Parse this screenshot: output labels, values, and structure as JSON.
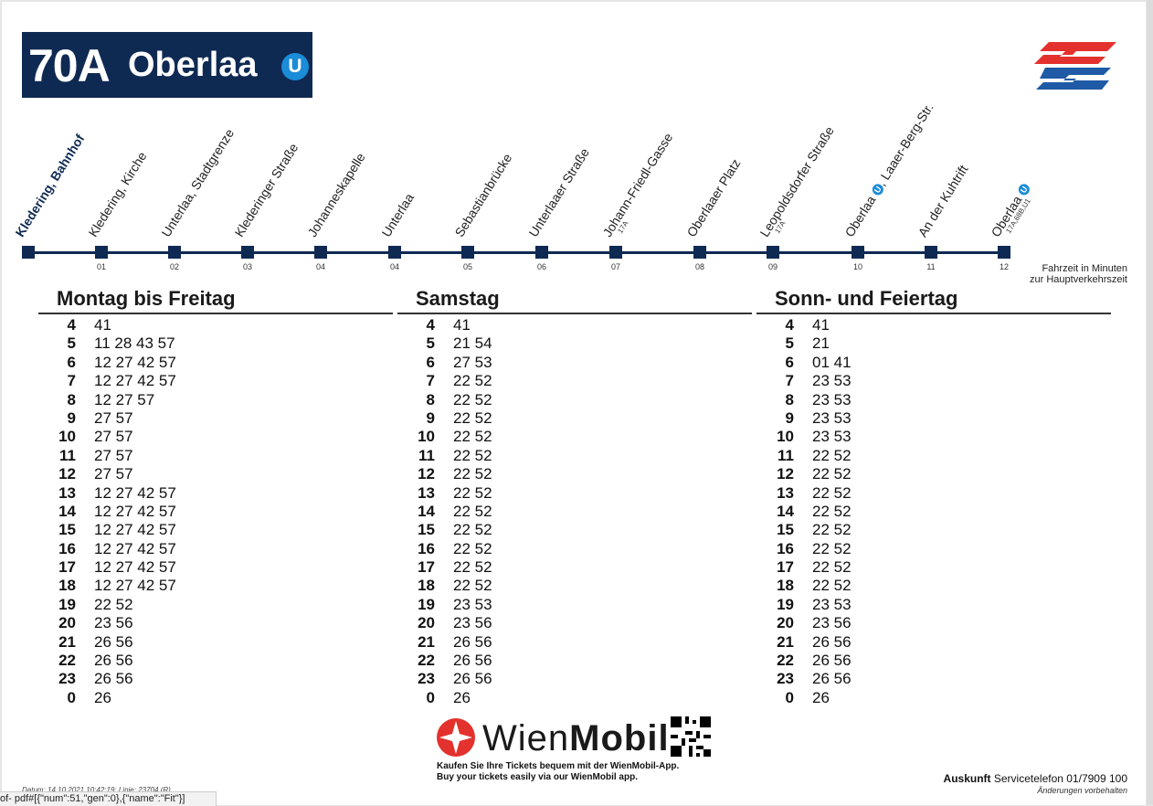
{
  "header": {
    "line": "70A",
    "destination": "Oberlaa",
    "u_symbol": "U"
  },
  "route": {
    "stops": [
      {
        "name": "Kledering, Bahnhof",
        "time": "",
        "sub": ""
      },
      {
        "name": "Kledering, Kirche",
        "time": "01",
        "sub": ""
      },
      {
        "name": "Unterlaa, Stadtgrenze",
        "time": "02",
        "sub": ""
      },
      {
        "name": "Klederinger Straße",
        "time": "03",
        "sub": ""
      },
      {
        "name": "Johanneskapelle",
        "time": "04",
        "sub": ""
      },
      {
        "name": "Unterlaa",
        "time": "04",
        "sub": ""
      },
      {
        "name": "Sebastianbrücke",
        "time": "05",
        "sub": ""
      },
      {
        "name": "Unterlaaer Straße",
        "time": "06",
        "sub": ""
      },
      {
        "name": "Johann-Friedl-Gasse",
        "time": "07",
        "sub": "17A"
      },
      {
        "name": "Oberlaaer Platz",
        "time": "08",
        "sub": ""
      },
      {
        "name": "Leopoldsdorfer Straße",
        "time": "09",
        "sub": "17A"
      },
      {
        "name": "Oberlaa",
        "name_suffix": ", Laaer-Berg-Str.",
        "time": "10",
        "sub": ""
      },
      {
        "name": "An der Kuhtrift",
        "time": "11",
        "sub": ""
      },
      {
        "name": "Oberlaa",
        "time": "12",
        "sub": "17A,68B,U1"
      }
    ],
    "fahrzeit_line1": "Fahrzeit in Minuten",
    "fahrzeit_line2": "zur Hauptverkehrszeit"
  },
  "timetable": [
    {
      "title": "Montag bis Freitag",
      "rows": [
        {
          "h": "4",
          "m": "41"
        },
        {
          "h": "5",
          "m": "11 28 43 57"
        },
        {
          "h": "6",
          "m": "12 27 42 57"
        },
        {
          "h": "7",
          "m": "12 27 42 57"
        },
        {
          "h": "8",
          "m": "12 27 57"
        },
        {
          "h": "9",
          "m": "27 57"
        },
        {
          "h": "10",
          "m": "27 57"
        },
        {
          "h": "11",
          "m": "27 57"
        },
        {
          "h": "12",
          "m": "27 57"
        },
        {
          "h": "13",
          "m": "12 27 42 57"
        },
        {
          "h": "14",
          "m": "12 27 42 57"
        },
        {
          "h": "15",
          "m": "12 27 42 57"
        },
        {
          "h": "16",
          "m": "12 27 42 57"
        },
        {
          "h": "17",
          "m": "12 27 42 57"
        },
        {
          "h": "18",
          "m": "12 27 42 57"
        },
        {
          "h": "19",
          "m": "22 52"
        },
        {
          "h": "20",
          "m": "23 56"
        },
        {
          "h": "21",
          "m": "26 56"
        },
        {
          "h": "22",
          "m": "26 56"
        },
        {
          "h": "23",
          "m": "26 56"
        },
        {
          "h": "0",
          "m": "26"
        }
      ]
    },
    {
      "title": "Samstag",
      "rows": [
        {
          "h": "4",
          "m": "41"
        },
        {
          "h": "5",
          "m": "21 54"
        },
        {
          "h": "6",
          "m": "27 53"
        },
        {
          "h": "7",
          "m": "22 52"
        },
        {
          "h": "8",
          "m": "22 52"
        },
        {
          "h": "9",
          "m": "22 52"
        },
        {
          "h": "10",
          "m": "22 52"
        },
        {
          "h": "11",
          "m": "22 52"
        },
        {
          "h": "12",
          "m": "22 52"
        },
        {
          "h": "13",
          "m": "22 52"
        },
        {
          "h": "14",
          "m": "22 52"
        },
        {
          "h": "15",
          "m": "22 52"
        },
        {
          "h": "16",
          "m": "22 52"
        },
        {
          "h": "17",
          "m": "22 52"
        },
        {
          "h": "18",
          "m": "22 52"
        },
        {
          "h": "19",
          "m": "23 53"
        },
        {
          "h": "20",
          "m": "23 56"
        },
        {
          "h": "21",
          "m": "26 56"
        },
        {
          "h": "22",
          "m": "26 56"
        },
        {
          "h": "23",
          "m": "26 56"
        },
        {
          "h": "0",
          "m": "26"
        }
      ]
    },
    {
      "title": "Sonn- und Feiertag",
      "rows": [
        {
          "h": "4",
          "m": "41"
        },
        {
          "h": "5",
          "m": "21"
        },
        {
          "h": "6",
          "m": "01 41"
        },
        {
          "h": "7",
          "m": "23 53"
        },
        {
          "h": "8",
          "m": "23 53"
        },
        {
          "h": "9",
          "m": "23 53"
        },
        {
          "h": "10",
          "m": "23 53"
        },
        {
          "h": "11",
          "m": "22 52"
        },
        {
          "h": "12",
          "m": "22 52"
        },
        {
          "h": "13",
          "m": "22 52"
        },
        {
          "h": "14",
          "m": "22 52"
        },
        {
          "h": "15",
          "m": "22 52"
        },
        {
          "h": "16",
          "m": "22 52"
        },
        {
          "h": "17",
          "m": "22 52"
        },
        {
          "h": "18",
          "m": "22 52"
        },
        {
          "h": "19",
          "m": "23 53"
        },
        {
          "h": "20",
          "m": "23 56"
        },
        {
          "h": "21",
          "m": "26 56"
        },
        {
          "h": "22",
          "m": "26 56"
        },
        {
          "h": "23",
          "m": "26 56"
        },
        {
          "h": "0",
          "m": "26"
        }
      ]
    }
  ],
  "wienmobil": {
    "brand_light": "Wien",
    "brand_bold": "Mobil",
    "caption_de": "Kaufen Sie Ihre Tickets bequem mit der WienMobil-App.",
    "caption_en": "Buy your tickets easily via our WienMobil app."
  },
  "footer": {
    "auskunft_label": "Auskunft",
    "auskunft_text": " Servicetelefon 01/7909 100",
    "aenderungen": "Änderungen vorbehalten",
    "datum": "Datum: 14.10.2021 10:42:19;  Linie: 23704   (R)",
    "statusbar": "of- pdf#[{\"num\":51,\"gen\":0},{\"name\":\"Fit\"}]"
  },
  "colors": {
    "navy": "#0f2a52",
    "u_blue": "#1a8cd8",
    "logo_red": "#e3312d",
    "logo_blue": "#1f5aa6"
  }
}
